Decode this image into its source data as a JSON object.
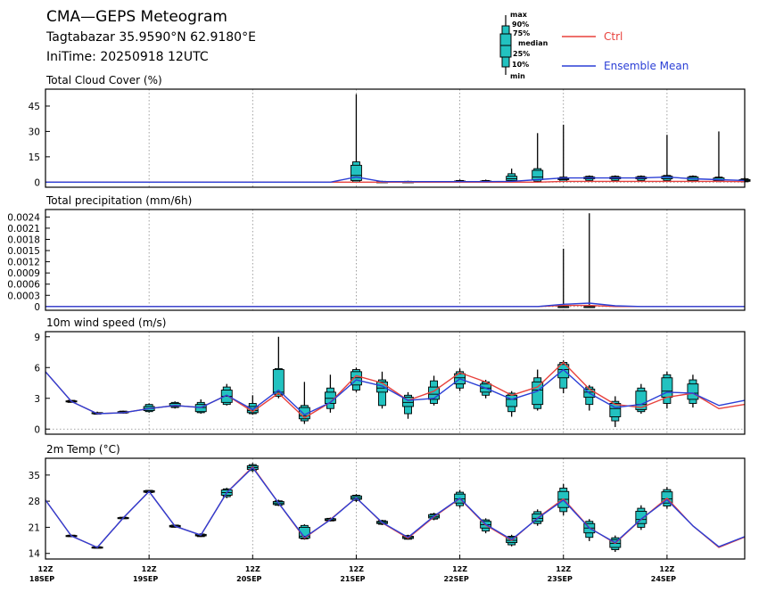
{
  "header": {
    "title": "CMA—GEPS Meteogram",
    "location": "Tagtabazar 35.9590°N 62.9180°E",
    "init_time": "IniTime: 20250918 12UTC"
  },
  "legend": {
    "box_labels": [
      "max",
      "90%",
      "75%",
      "median",
      "25%",
      "10%",
      "min"
    ],
    "ctrl_label": "Ctrl",
    "mean_label": "Ensemble Mean",
    "ctrl_color": "#e8413c",
    "mean_color": "#2b3fd6",
    "box_color": "#22c2c0"
  },
  "x_axis": {
    "ticks": [
      {
        "hour": "12Z",
        "date": "18SEP"
      },
      {
        "hour": "12Z",
        "date": "19SEP"
      },
      {
        "hour": "12Z",
        "date": "20SEP"
      },
      {
        "hour": "12Z",
        "date": "21SEP"
      },
      {
        "hour": "12Z",
        "date": "22SEP"
      },
      {
        "hour": "12Z",
        "date": "23SEP"
      },
      {
        "hour": "12Z",
        "date": "24SEP"
      }
    ]
  },
  "chart_data": [
    {
      "type": "box",
      "title": "Total Cloud Cover (%)",
      "x_hours": [
        0,
        6,
        12,
        18,
        24,
        30,
        36,
        42,
        48,
        54,
        60,
        66,
        72,
        78,
        84,
        90,
        96,
        102,
        108,
        114,
        120,
        126,
        132,
        138,
        144,
        150,
        156,
        162
      ],
      "ylim": [
        -3,
        55
      ],
      "yticks": [
        0,
        15,
        30,
        45
      ],
      "ctrl": [
        0,
        0,
        0,
        0,
        0,
        0,
        0,
        0,
        0,
        0,
        0,
        0,
        0,
        0,
        0,
        0,
        0,
        0,
        0,
        0,
        0.5,
        0.5,
        0.5,
        0.5,
        0.5,
        0.5,
        0.5,
        0.3
      ],
      "mean": [
        0,
        0,
        0,
        0,
        0,
        0,
        0,
        0,
        0,
        0,
        0,
        0,
        3,
        0.3,
        0.3,
        0.3,
        0.3,
        0.3,
        0.5,
        1.5,
        2.5,
        2.5,
        2.5,
        2.5,
        3,
        2,
        1.5,
        1
      ],
      "boxes": [
        {
          "x": 72,
          "min": 0,
          "p10": 0,
          "p25": 1,
          "median": 4,
          "p75": 10,
          "p90": 12,
          "max": 52
        },
        {
          "x": 78,
          "min": 0,
          "p10": 0,
          "p25": 0,
          "median": 0,
          "p75": 0.3,
          "p90": 0.5,
          "max": 0.8
        },
        {
          "x": 84,
          "min": 0,
          "p10": 0,
          "p25": 0,
          "median": 0,
          "p75": 0.3,
          "p90": 0.5,
          "max": 0.8
        },
        {
          "x": 96,
          "min": 0,
          "p10": 0,
          "p25": 0,
          "median": 0.3,
          "p75": 0.7,
          "p90": 1,
          "max": 1.5
        },
        {
          "x": 102,
          "min": 0,
          "p10": 0,
          "p25": 0,
          "median": 0.3,
          "p75": 0.7,
          "p90": 1,
          "max": 1.5
        },
        {
          "x": 108,
          "min": 0,
          "p10": 0.5,
          "p25": 1,
          "median": 2,
          "p75": 3.5,
          "p90": 5,
          "max": 8
        },
        {
          "x": 114,
          "min": 0,
          "p10": 0.5,
          "p25": 1.5,
          "median": 3,
          "p75": 7,
          "p90": 8,
          "max": 29
        },
        {
          "x": 120,
          "min": 0,
          "p10": 0.5,
          "p25": 1.5,
          "median": 2,
          "p75": 2.5,
          "p90": 3,
          "max": 34
        },
        {
          "x": 126,
          "min": 0.5,
          "p10": 1,
          "p25": 2,
          "median": 2.5,
          "p75": 3,
          "p90": 3.5,
          "max": 4
        },
        {
          "x": 132,
          "min": 0.5,
          "p10": 1,
          "p25": 2,
          "median": 2.5,
          "p75": 3,
          "p90": 3.5,
          "max": 4
        },
        {
          "x": 138,
          "min": 0.5,
          "p10": 1,
          "p25": 2,
          "median": 2.5,
          "p75": 3,
          "p90": 3.5,
          "max": 4
        },
        {
          "x": 144,
          "min": 0.5,
          "p10": 1,
          "p25": 2,
          "median": 3,
          "p75": 3.5,
          "p90": 4,
          "max": 28
        },
        {
          "x": 150,
          "min": 0,
          "p10": 0.5,
          "p25": 1,
          "median": 2,
          "p75": 3,
          "p90": 3.5,
          "max": 4
        },
        {
          "x": 156,
          "min": 0,
          "p10": 0.5,
          "p25": 1,
          "median": 1.5,
          "p75": 2.5,
          "p90": 3,
          "max": 30
        },
        {
          "x": 162,
          "min": 0,
          "p10": 0.2,
          "p25": 0.5,
          "median": 1,
          "p75": 1.5,
          "p90": 2,
          "max": 3
        }
      ]
    },
    {
      "type": "box",
      "title": "Total precipitation (mm/6h)",
      "x_hours": [
        0,
        6,
        12,
        18,
        24,
        30,
        36,
        42,
        48,
        54,
        60,
        66,
        72,
        78,
        84,
        90,
        96,
        102,
        108,
        114,
        120,
        126,
        132,
        138,
        144,
        150,
        156,
        162
      ],
      "ylim": [
        -0.0001,
        0.0026
      ],
      "yticks": [
        0,
        0.0003,
        0.0006,
        0.0009,
        0.0012,
        0.0015,
        0.0018,
        0.0021,
        0.0024
      ],
      "ytick_labels": [
        "0",
        "0.0003",
        "0.0006",
        "0.0009",
        "0.0012",
        "0.0015",
        "0.0018",
        "0.0021",
        "0.0024"
      ],
      "ctrl": [
        0,
        0,
        0,
        0,
        0,
        0,
        0,
        0,
        0,
        0,
        0,
        0,
        0,
        0,
        0,
        0,
        0,
        0,
        0,
        0,
        3e-05,
        3e-05,
        0,
        0,
        0,
        0,
        0,
        0
      ],
      "mean": [
        0,
        0,
        0,
        0,
        0,
        0,
        0,
        0,
        0,
        0,
        0,
        0,
        0,
        0,
        0,
        0,
        0,
        0,
        0,
        0,
        6e-05,
        9e-05,
        2e-05,
        0,
        0,
        0,
        0,
        0
      ],
      "boxes": [
        {
          "x": 120,
          "min": 0,
          "p10": 0,
          "p25": 0,
          "median": 0,
          "p75": 0,
          "p90": 0,
          "max": 0.00155
        },
        {
          "x": 126,
          "min": 0,
          "p10": 0,
          "p25": 0,
          "median": 0,
          "p75": 0,
          "p90": 0,
          "max": 0.0025
        }
      ]
    },
    {
      "type": "box",
      "title": "10m wind speed (m/s)",
      "x_hours": [
        0,
        6,
        12,
        18,
        24,
        30,
        36,
        42,
        48,
        54,
        60,
        66,
        72,
        78,
        84,
        90,
        96,
        102,
        108,
        114,
        120,
        126,
        132,
        138,
        144,
        150,
        156,
        162
      ],
      "ylim": [
        -0.5,
        9.5
      ],
      "yticks": [
        0,
        3,
        6,
        9
      ],
      "ctrl": [
        5.6,
        2.7,
        1.5,
        1.6,
        2.0,
        2.3,
        2.1,
        3.3,
        1.7,
        3.5,
        1.1,
        2.6,
        5.2,
        4.5,
        2.8,
        3.7,
        5.5,
        4.6,
        3.3,
        4.1,
        6.5,
        3.9,
        2.4,
        2.1,
        3.1,
        3.5,
        2.0,
        2.4
      ],
      "mean": [
        5.6,
        2.7,
        1.5,
        1.6,
        2.0,
        2.3,
        2.1,
        3.3,
        1.9,
        3.8,
        1.4,
        2.6,
        4.8,
        4.2,
        2.8,
        3.0,
        4.9,
        4.0,
        2.9,
        3.7,
        5.8,
        3.5,
        2.1,
        2.4,
        3.6,
        3.5,
        2.3,
        2.8
      ],
      "boxes": [
        {
          "x": 6,
          "min": 2.6,
          "p10": 2.6,
          "p25": 2.65,
          "median": 2.7,
          "p75": 2.75,
          "p90": 2.8,
          "max": 2.8
        },
        {
          "x": 12,
          "min": 1.4,
          "p10": 1.45,
          "p25": 1.5,
          "median": 1.5,
          "p75": 1.6,
          "p90": 1.6,
          "max": 1.7
        },
        {
          "x": 18,
          "min": 1.5,
          "p10": 1.55,
          "p25": 1.6,
          "median": 1.6,
          "p75": 1.7,
          "p90": 1.75,
          "max": 1.8
        },
        {
          "x": 24,
          "min": 1.6,
          "p10": 1.7,
          "p25": 1.8,
          "median": 2.0,
          "p75": 2.2,
          "p90": 2.4,
          "max": 2.5
        },
        {
          "x": 30,
          "min": 2.0,
          "p10": 2.1,
          "p25": 2.2,
          "median": 2.3,
          "p75": 2.5,
          "p90": 2.6,
          "max": 2.7
        },
        {
          "x": 36,
          "min": 1.5,
          "p10": 1.6,
          "p25": 1.7,
          "median": 2.1,
          "p75": 2.4,
          "p90": 2.6,
          "max": 2.9
        },
        {
          "x": 42,
          "min": 2.3,
          "p10": 2.4,
          "p25": 2.6,
          "median": 3.2,
          "p75": 3.8,
          "p90": 4.1,
          "max": 4.4
        },
        {
          "x": 48,
          "min": 1.4,
          "p10": 1.5,
          "p25": 1.6,
          "median": 1.8,
          "p75": 2.2,
          "p90": 2.5,
          "max": 3.3
        },
        {
          "x": 54,
          "min": 3.0,
          "p10": 3.2,
          "p25": 3.4,
          "median": 3.6,
          "p75": 5.8,
          "p90": 5.9,
          "max": 9.0
        },
        {
          "x": 60,
          "min": 0.5,
          "p10": 0.8,
          "p25": 1.0,
          "median": 1.3,
          "p75": 2.1,
          "p90": 2.3,
          "max": 4.6
        },
        {
          "x": 66,
          "min": 1.6,
          "p10": 2.0,
          "p25": 2.5,
          "median": 3.0,
          "p75": 3.6,
          "p90": 4.0,
          "max": 5.3
        },
        {
          "x": 72,
          "min": 3.6,
          "p10": 3.8,
          "p25": 4.3,
          "median": 5.0,
          "p75": 5.6,
          "p90": 5.8,
          "max": 6.0
        },
        {
          "x": 78,
          "min": 2.0,
          "p10": 2.3,
          "p25": 3.6,
          "median": 4.0,
          "p75": 4.6,
          "p90": 4.8,
          "max": 5.6
        },
        {
          "x": 84,
          "min": 1.0,
          "p10": 1.5,
          "p25": 2.2,
          "median": 2.6,
          "p75": 3.1,
          "p90": 3.3,
          "max": 3.6
        },
        {
          "x": 90,
          "min": 2.3,
          "p10": 2.5,
          "p25": 2.9,
          "median": 3.4,
          "p75": 4.1,
          "p90": 4.7,
          "max": 5.2
        },
        {
          "x": 96,
          "min": 3.7,
          "p10": 4.0,
          "p25": 4.4,
          "median": 5.0,
          "p75": 5.4,
          "p90": 5.6,
          "max": 5.9
        },
        {
          "x": 102,
          "min": 3.0,
          "p10": 3.3,
          "p25": 3.6,
          "median": 4.0,
          "p75": 4.4,
          "p90": 4.6,
          "max": 4.8
        },
        {
          "x": 108,
          "min": 1.2,
          "p10": 1.7,
          "p25": 2.2,
          "median": 2.9,
          "p75": 3.3,
          "p90": 3.5,
          "max": 3.7
        },
        {
          "x": 114,
          "min": 1.8,
          "p10": 2.0,
          "p25": 2.4,
          "median": 3.8,
          "p75": 4.6,
          "p90": 5.0,
          "max": 5.8
        },
        {
          "x": 120,
          "min": 3.5,
          "p10": 4.0,
          "p25": 5.0,
          "median": 5.8,
          "p75": 6.3,
          "p90": 6.5,
          "max": 6.7
        },
        {
          "x": 126,
          "min": 1.8,
          "p10": 2.4,
          "p25": 3.1,
          "median": 3.6,
          "p75": 3.9,
          "p90": 4.1,
          "max": 4.3
        },
        {
          "x": 132,
          "min": 0.2,
          "p10": 0.8,
          "p25": 1.2,
          "median": 2.0,
          "p75": 2.5,
          "p90": 2.7,
          "max": 3.2
        },
        {
          "x": 138,
          "min": 1.5,
          "p10": 1.7,
          "p25": 1.9,
          "median": 2.4,
          "p75": 3.7,
          "p90": 4.0,
          "max": 4.4
        },
        {
          "x": 144,
          "min": 2.0,
          "p10": 2.5,
          "p25": 3.1,
          "median": 3.7,
          "p75": 5.0,
          "p90": 5.3,
          "max": 5.6
        },
        {
          "x": 150,
          "min": 2.1,
          "p10": 2.5,
          "p25": 2.9,
          "median": 3.5,
          "p75": 4.4,
          "p90": 4.8,
          "max": 5.3
        }
      ]
    },
    {
      "type": "box",
      "title": "2m Temp (°C)",
      "x_hours": [
        0,
        6,
        12,
        18,
        24,
        30,
        36,
        42,
        48,
        54,
        60,
        66,
        72,
        78,
        84,
        90,
        96,
        102,
        108,
        114,
        120,
        126,
        132,
        138,
        144,
        150,
        156,
        162
      ],
      "ylim": [
        12.5,
        39.5
      ],
      "yticks": [
        14,
        21,
        28,
        35
      ],
      "ctrl": [
        28.3,
        18.7,
        15.6,
        23.5,
        30.6,
        21.3,
        18.9,
        30.3,
        37.2,
        27.5,
        18.1,
        23.1,
        28.9,
        22.2,
        18.1,
        23.8,
        28.7,
        21.6,
        17.5,
        23.5,
        28.6,
        20.9,
        16.7,
        23.1,
        28.8,
        21.4,
        15.6,
        18.4
      ],
      "mean": [
        28.3,
        18.7,
        15.6,
        23.5,
        30.6,
        21.3,
        18.9,
        30.3,
        37.0,
        27.5,
        18.3,
        23.0,
        28.9,
        22.3,
        18.3,
        24.0,
        28.8,
        21.8,
        17.7,
        23.4,
        28.3,
        20.8,
        16.9,
        23.2,
        28.4,
        21.4,
        15.8,
        18.5
      ],
      "boxes": [
        {
          "x": 6,
          "min": 18.4,
          "p10": 18.5,
          "p25": 18.6,
          "median": 18.7,
          "p75": 18.8,
          "p90": 18.9,
          "max": 19.0
        },
        {
          "x": 12,
          "min": 15.3,
          "p10": 15.4,
          "p25": 15.5,
          "median": 15.6,
          "p75": 15.7,
          "p90": 15.8,
          "max": 15.9
        },
        {
          "x": 18,
          "min": 23.2,
          "p10": 23.3,
          "p25": 23.4,
          "median": 23.5,
          "p75": 23.6,
          "p90": 23.7,
          "max": 23.8
        },
        {
          "x": 24,
          "min": 30.2,
          "p10": 30.3,
          "p25": 30.4,
          "median": 30.6,
          "p75": 30.8,
          "p90": 30.9,
          "max": 31.0
        },
        {
          "x": 30,
          "min": 20.9,
          "p10": 21.0,
          "p25": 21.1,
          "median": 21.3,
          "p75": 21.5,
          "p90": 21.6,
          "max": 21.7
        },
        {
          "x": 36,
          "min": 18.4,
          "p10": 18.5,
          "p25": 18.7,
          "median": 18.9,
          "p75": 19.1,
          "p90": 19.2,
          "max": 19.4
        },
        {
          "x": 42,
          "min": 28.8,
          "p10": 29.2,
          "p25": 29.6,
          "median": 30.3,
          "p75": 31.0,
          "p90": 31.3,
          "max": 31.6
        },
        {
          "x": 48,
          "min": 35.8,
          "p10": 36.2,
          "p25": 36.5,
          "median": 37.0,
          "p75": 37.5,
          "p90": 37.8,
          "max": 38.2
        },
        {
          "x": 54,
          "min": 26.7,
          "p10": 26.9,
          "p25": 27.1,
          "median": 27.5,
          "p75": 27.9,
          "p90": 28.1,
          "max": 28.4
        },
        {
          "x": 60,
          "min": 17.7,
          "p10": 17.9,
          "p25": 18.1,
          "median": 18.6,
          "p75": 21.0,
          "p90": 21.5,
          "max": 21.8
        },
        {
          "x": 66,
          "min": 22.6,
          "p10": 22.7,
          "p25": 22.8,
          "median": 23.0,
          "p75": 23.3,
          "p90": 23.4,
          "max": 23.6
        },
        {
          "x": 72,
          "min": 27.8,
          "p10": 28.2,
          "p25": 28.5,
          "median": 28.9,
          "p75": 29.4,
          "p90": 29.6,
          "max": 29.9
        },
        {
          "x": 78,
          "min": 21.6,
          "p10": 21.8,
          "p25": 22.0,
          "median": 22.3,
          "p75": 22.6,
          "p90": 22.8,
          "max": 23.0
        },
        {
          "x": 84,
          "min": 17.7,
          "p10": 17.8,
          "p25": 18.0,
          "median": 18.3,
          "p75": 18.6,
          "p90": 18.8,
          "max": 19.0
        },
        {
          "x": 90,
          "min": 22.9,
          "p10": 23.2,
          "p25": 23.5,
          "median": 23.9,
          "p75": 24.4,
          "p90": 24.6,
          "max": 24.9
        },
        {
          "x": 96,
          "min": 26.2,
          "p10": 26.8,
          "p25": 27.5,
          "median": 28.6,
          "p75": 29.9,
          "p90": 30.4,
          "max": 31.0
        },
        {
          "x": 102,
          "min": 19.4,
          "p10": 20.0,
          "p25": 20.8,
          "median": 21.7,
          "p75": 22.6,
          "p90": 23.0,
          "max": 23.4
        },
        {
          "x": 108,
          "min": 15.9,
          "p10": 16.3,
          "p25": 16.9,
          "median": 17.5,
          "p75": 18.3,
          "p90": 18.6,
          "max": 19.0
        },
        {
          "x": 114,
          "min": 21.4,
          "p10": 22.0,
          "p25": 22.6,
          "median": 23.4,
          "p75": 24.6,
          "p90": 25.2,
          "max": 25.8
        },
        {
          "x": 120,
          "min": 24.2,
          "p10": 25.2,
          "p25": 26.3,
          "median": 28.5,
          "p75": 30.6,
          "p90": 31.5,
          "max": 32.6
        },
        {
          "x": 126,
          "min": 17.3,
          "p10": 18.3,
          "p25": 19.5,
          "median": 20.8,
          "p75": 22.0,
          "p90": 22.6,
          "max": 23.2
        },
        {
          "x": 132,
          "min": 14.4,
          "p10": 15.0,
          "p25": 15.6,
          "median": 16.7,
          "p75": 17.7,
          "p90": 18.2,
          "max": 18.8
        },
        {
          "x": 138,
          "min": 20.3,
          "p10": 21.0,
          "p25": 22.0,
          "median": 23.1,
          "p75": 25.3,
          "p90": 26.1,
          "max": 26.9
        },
        {
          "x": 144,
          "min": 26.0,
          "p10": 26.7,
          "p25": 27.5,
          "median": 28.6,
          "p75": 30.5,
          "p90": 31.1,
          "max": 31.8
        }
      ]
    }
  ]
}
